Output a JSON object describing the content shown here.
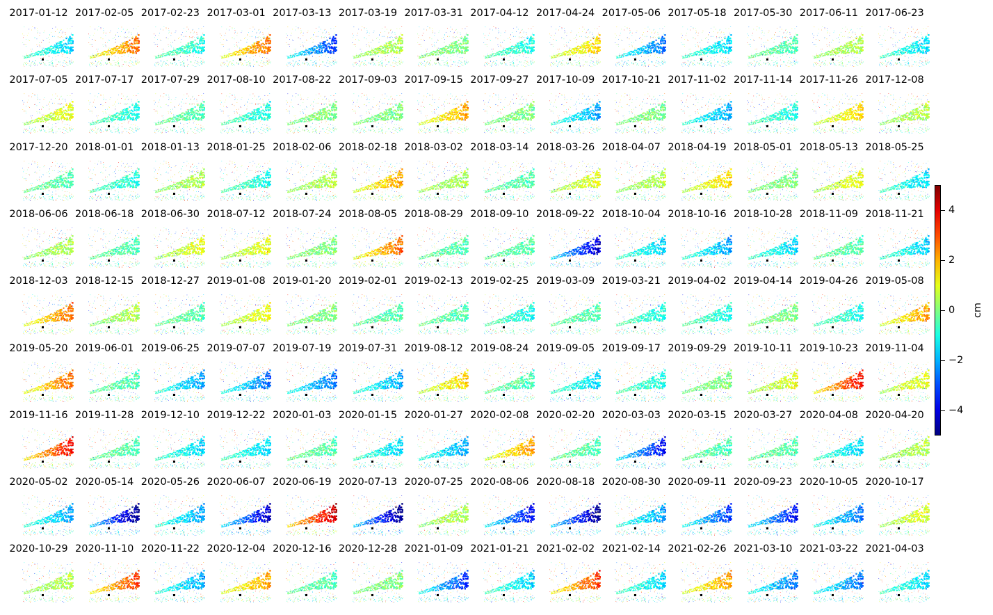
{
  "chart_data": {
    "type": "heatmap",
    "colormap": "jet",
    "colorbar": {
      "label": "cm",
      "vmin": -5,
      "vmax": 5,
      "ticks": [
        4,
        2,
        0,
        -2,
        -4
      ],
      "tick_labels": [
        "4",
        "2",
        "0",
        "−2",
        "−4"
      ]
    },
    "panels": [
      {
        "date": "2017-01-12",
        "level": -1.5
      },
      {
        "date": "2017-02-05",
        "level": 2.5
      },
      {
        "date": "2017-02-23",
        "level": -1.0
      },
      {
        "date": "2017-03-01",
        "level": 2.5
      },
      {
        "date": "2017-03-13",
        "level": -3.0
      },
      {
        "date": "2017-03-19",
        "level": 0.5
      },
      {
        "date": "2017-03-31",
        "level": 0.0
      },
      {
        "date": "2017-04-12",
        "level": -1.0
      },
      {
        "date": "2017-04-24",
        "level": 1.5
      },
      {
        "date": "2017-05-06",
        "level": -2.5
      },
      {
        "date": "2017-05-18",
        "level": -1.5
      },
      {
        "date": "2017-05-30",
        "level": -0.5
      },
      {
        "date": "2017-06-11",
        "level": 0.5
      },
      {
        "date": "2017-06-23",
        "level": -1.5
      },
      {
        "date": "2017-07-05",
        "level": 1.0
      },
      {
        "date": "2017-07-17",
        "level": -1.0
      },
      {
        "date": "2017-07-29",
        "level": -0.5
      },
      {
        "date": "2017-08-10",
        "level": -1.0
      },
      {
        "date": "2017-08-22",
        "level": 0.0
      },
      {
        "date": "2017-09-03",
        "level": 0.0
      },
      {
        "date": "2017-09-15",
        "level": 2.0
      },
      {
        "date": "2017-09-27",
        "level": 0.0
      },
      {
        "date": "2017-10-09",
        "level": -2.0
      },
      {
        "date": "2017-10-21",
        "level": 0.0
      },
      {
        "date": "2017-11-02",
        "level": -2.0
      },
      {
        "date": "2017-11-14",
        "level": -1.0
      },
      {
        "date": "2017-11-26",
        "level": 1.5
      },
      {
        "date": "2017-12-08",
        "level": 0.5
      },
      {
        "date": "2017-12-20",
        "level": -0.5
      },
      {
        "date": "2018-01-01",
        "level": -1.0
      },
      {
        "date": "2018-01-13",
        "level": 0.5
      },
      {
        "date": "2018-01-25",
        "level": -1.0
      },
      {
        "date": "2018-02-06",
        "level": 0.5
      },
      {
        "date": "2018-02-18",
        "level": 2.0
      },
      {
        "date": "2018-03-02",
        "level": 0.5
      },
      {
        "date": "2018-03-14",
        "level": -0.5
      },
      {
        "date": "2018-03-26",
        "level": 1.0
      },
      {
        "date": "2018-04-07",
        "level": 0.5
      },
      {
        "date": "2018-04-19",
        "level": 1.5
      },
      {
        "date": "2018-05-01",
        "level": 0.0
      },
      {
        "date": "2018-05-13",
        "level": 1.0
      },
      {
        "date": "2018-05-25",
        "level": -1.5
      },
      {
        "date": "2018-06-06",
        "level": 0.5
      },
      {
        "date": "2018-06-18",
        "level": -0.5
      },
      {
        "date": "2018-06-30",
        "level": 1.0
      },
      {
        "date": "2018-07-12",
        "level": 1.0
      },
      {
        "date": "2018-07-24",
        "level": 0.0
      },
      {
        "date": "2018-08-05",
        "level": 2.5
      },
      {
        "date": "2018-08-29",
        "level": -0.5
      },
      {
        "date": "2018-09-10",
        "level": -0.5
      },
      {
        "date": "2018-09-22",
        "level": -4.0
      },
      {
        "date": "2018-10-04",
        "level": -1.5
      },
      {
        "date": "2018-10-16",
        "level": -2.0
      },
      {
        "date": "2018-10-28",
        "level": -1.5
      },
      {
        "date": "2018-11-09",
        "level": -0.5
      },
      {
        "date": "2018-11-21",
        "level": -1.5
      },
      {
        "date": "2018-12-03",
        "level": 2.5
      },
      {
        "date": "2018-12-15",
        "level": 0.5
      },
      {
        "date": "2018-12-27",
        "level": -0.5
      },
      {
        "date": "2019-01-08",
        "level": 1.0
      },
      {
        "date": "2019-01-20",
        "level": 0.0
      },
      {
        "date": "2019-02-01",
        "level": -0.5
      },
      {
        "date": "2019-02-13",
        "level": -0.5
      },
      {
        "date": "2019-02-25",
        "level": -1.0
      },
      {
        "date": "2019-03-09",
        "level": -0.5
      },
      {
        "date": "2019-03-21",
        "level": -1.0
      },
      {
        "date": "2019-04-02",
        "level": -1.0
      },
      {
        "date": "2019-04-14",
        "level": 0.0
      },
      {
        "date": "2019-04-26",
        "level": -1.0
      },
      {
        "date": "2019-05-08",
        "level": 2.0
      },
      {
        "date": "2019-05-20",
        "level": 2.5
      },
      {
        "date": "2019-06-01",
        "level": -0.5
      },
      {
        "date": "2019-06-25",
        "level": -2.0
      },
      {
        "date": "2019-07-07",
        "level": -2.5
      },
      {
        "date": "2019-07-19",
        "level": -2.5
      },
      {
        "date": "2019-07-31",
        "level": -2.0
      },
      {
        "date": "2019-08-12",
        "level": 1.5
      },
      {
        "date": "2019-08-24",
        "level": -0.5
      },
      {
        "date": "2019-09-05",
        "level": -1.5
      },
      {
        "date": "2019-09-17",
        "level": -1.0
      },
      {
        "date": "2019-09-29",
        "level": 0.0
      },
      {
        "date": "2019-10-11",
        "level": 1.0
      },
      {
        "date": "2019-10-23",
        "level": 3.5
      },
      {
        "date": "2019-11-04",
        "level": 1.0
      },
      {
        "date": "2019-11-16",
        "level": 3.5
      },
      {
        "date": "2019-11-28",
        "level": -0.5
      },
      {
        "date": "2019-12-10",
        "level": -1.5
      },
      {
        "date": "2019-12-22",
        "level": -1.5
      },
      {
        "date": "2020-01-03",
        "level": -0.5
      },
      {
        "date": "2020-01-15",
        "level": -1.5
      },
      {
        "date": "2020-01-27",
        "level": -2.0
      },
      {
        "date": "2020-02-08",
        "level": 2.0
      },
      {
        "date": "2020-02-20",
        "level": -0.5
      },
      {
        "date": "2020-03-03",
        "level": -3.5
      },
      {
        "date": "2020-03-15",
        "level": -0.5
      },
      {
        "date": "2020-03-27",
        "level": -0.5
      },
      {
        "date": "2020-04-08",
        "level": -1.5
      },
      {
        "date": "2020-04-20",
        "level": 0.5
      },
      {
        "date": "2020-05-02",
        "level": -2.0
      },
      {
        "date": "2020-05-14",
        "level": -4.5
      },
      {
        "date": "2020-05-26",
        "level": -2.0
      },
      {
        "date": "2020-06-07",
        "level": -4.0
      },
      {
        "date": "2020-06-19",
        "level": 4.0
      },
      {
        "date": "2020-07-13",
        "level": -4.5
      },
      {
        "date": "2020-07-25",
        "level": 0.5
      },
      {
        "date": "2020-08-06",
        "level": -3.5
      },
      {
        "date": "2020-08-18",
        "level": -4.5
      },
      {
        "date": "2020-08-30",
        "level": -2.0
      },
      {
        "date": "2020-09-11",
        "level": -3.0
      },
      {
        "date": "2020-09-23",
        "level": -3.5
      },
      {
        "date": "2020-10-05",
        "level": -2.5
      },
      {
        "date": "2020-10-17",
        "level": 1.0
      },
      {
        "date": "2020-10-29",
        "level": 0.5
      },
      {
        "date": "2020-11-10",
        "level": 3.0
      },
      {
        "date": "2020-11-22",
        "level": -2.0
      },
      {
        "date": "2020-12-04",
        "level": 2.0
      },
      {
        "date": "2020-12-16",
        "level": -0.5
      },
      {
        "date": "2020-12-28",
        "level": 0.0
      },
      {
        "date": "2021-01-09",
        "level": -3.0
      },
      {
        "date": "2021-01-21",
        "level": -1.5
      },
      {
        "date": "2021-02-02",
        "level": 3.0
      },
      {
        "date": "2021-02-14",
        "level": -1.5
      },
      {
        "date": "2021-02-26",
        "level": 2.0
      },
      {
        "date": "2021-03-10",
        "level": -2.5
      },
      {
        "date": "2021-03-22",
        "level": -2.5
      },
      {
        "date": "2021-04-03",
        "level": -1.5
      }
    ]
  }
}
